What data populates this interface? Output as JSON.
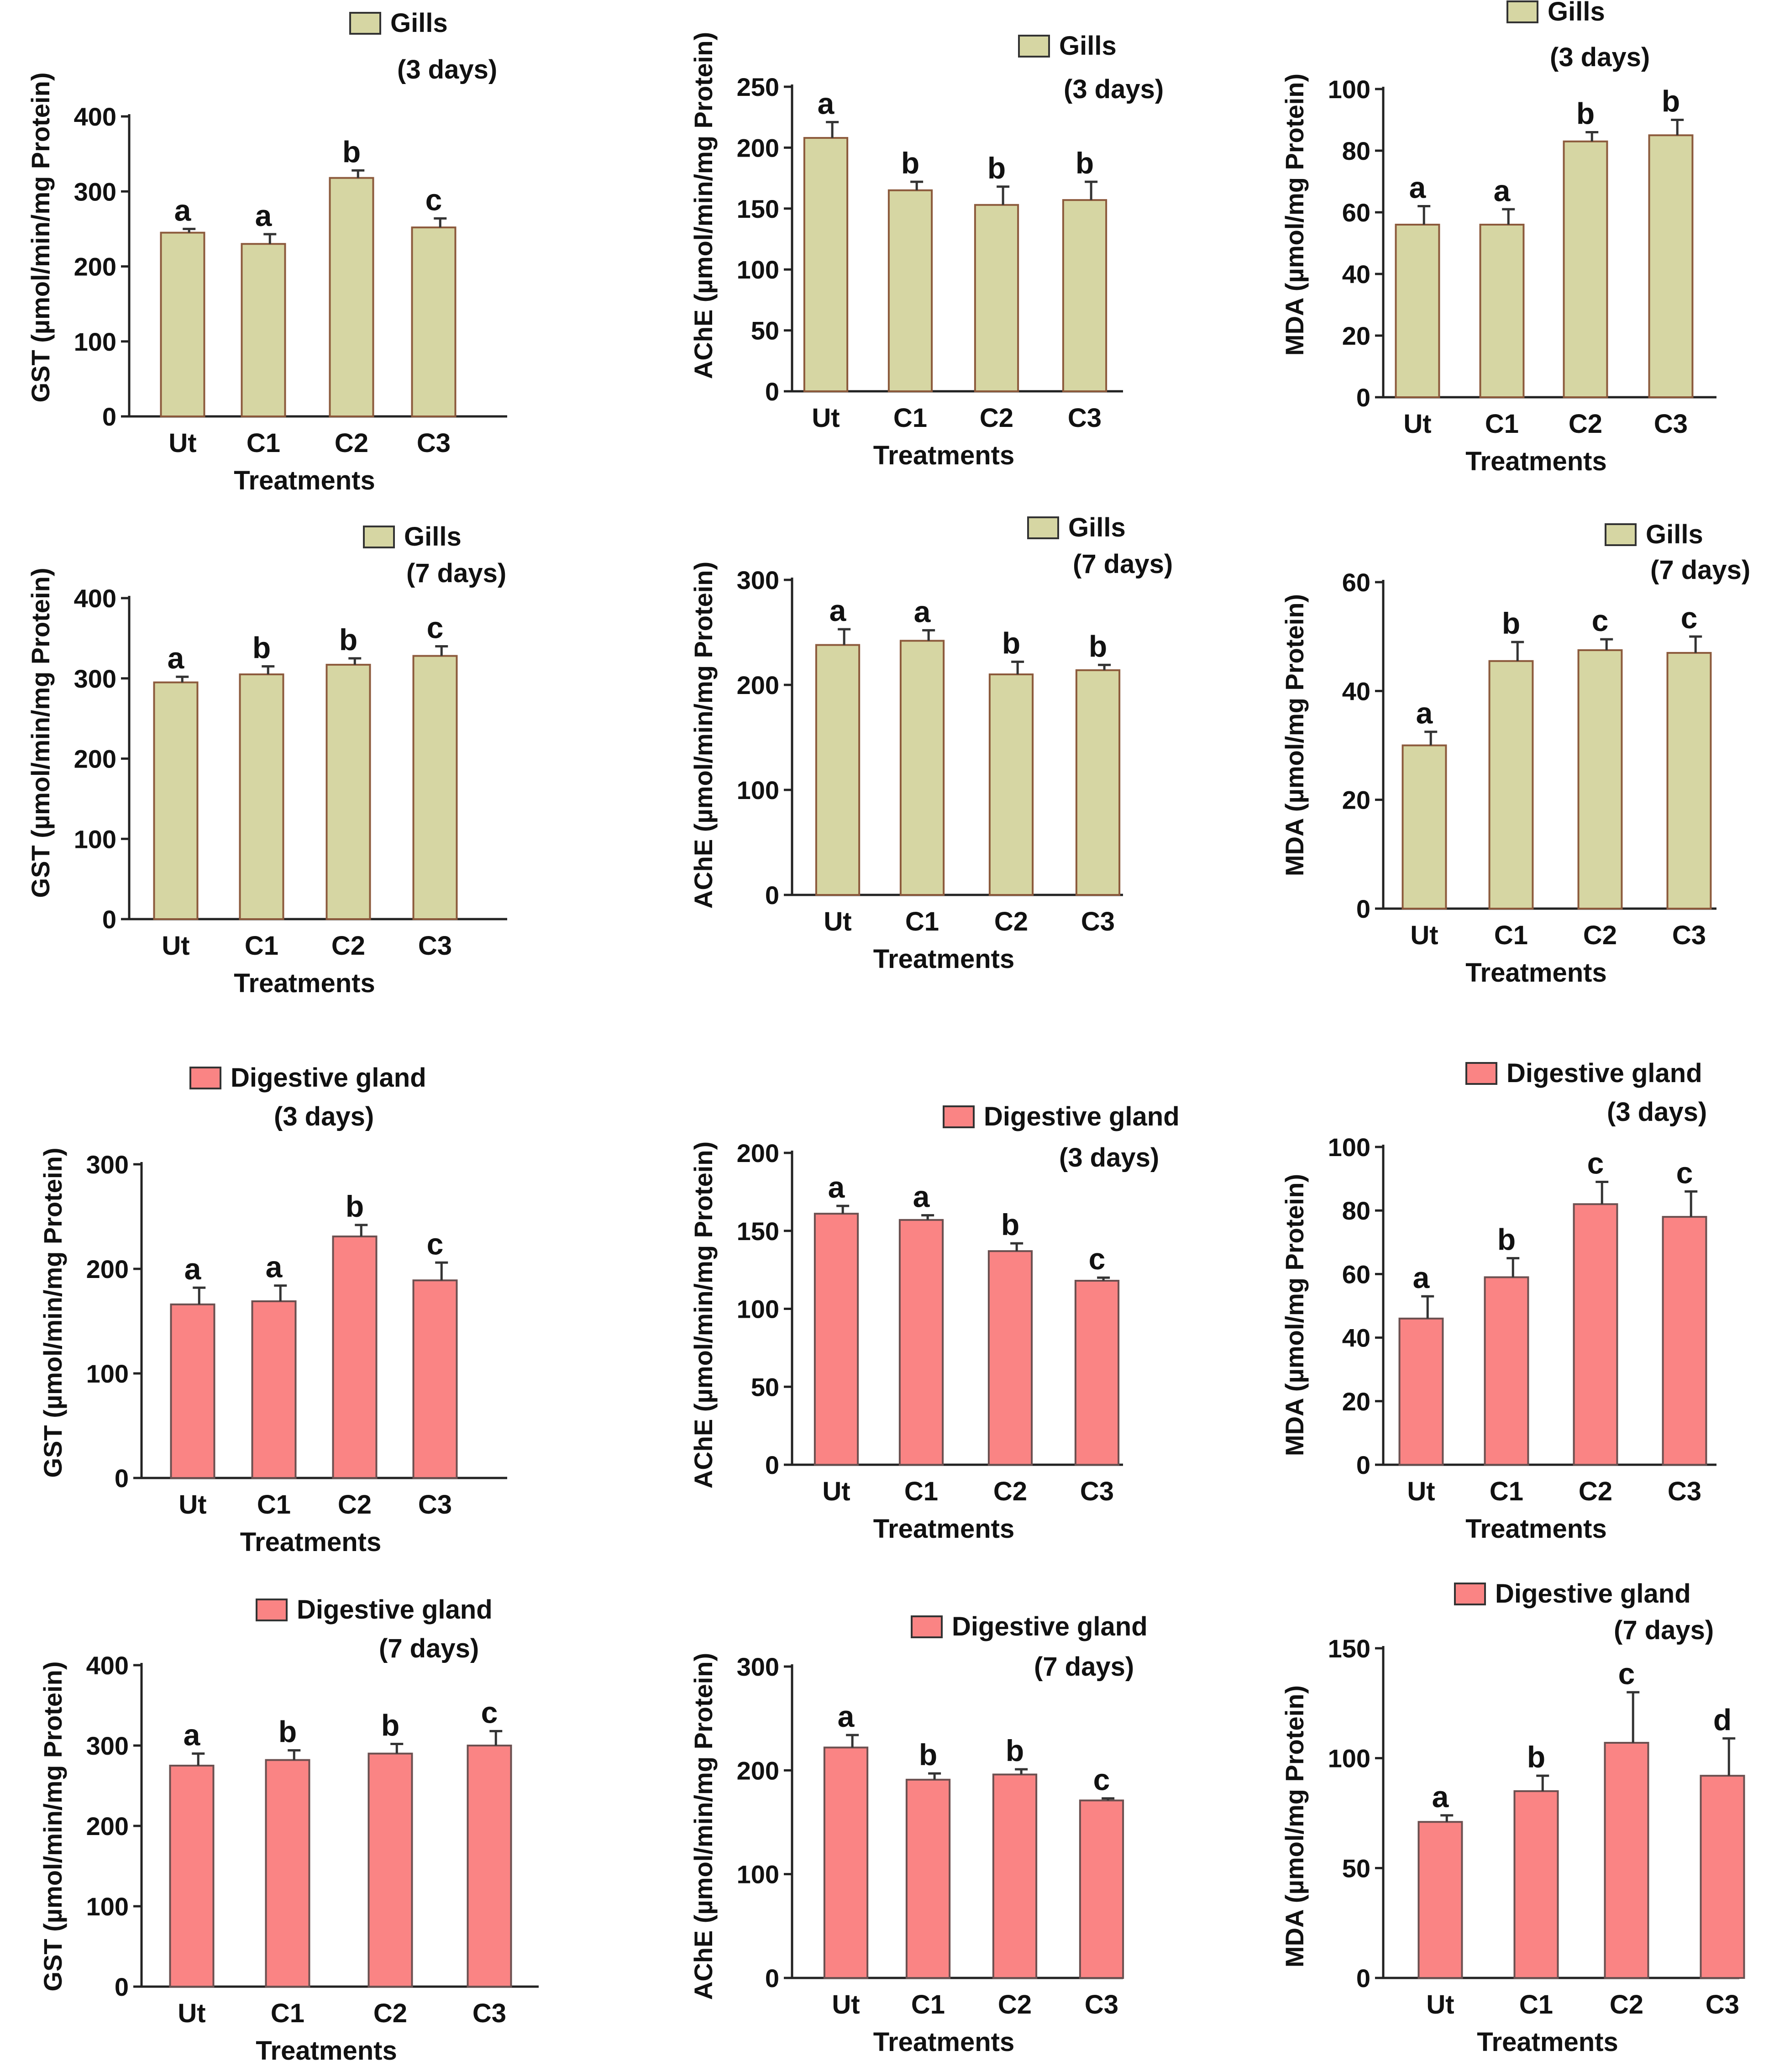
{
  "figure": {
    "xlabel": "Treatments",
    "colors": {
      "Gills": "#d6d6a3",
      "Digestive gland": "#fa8484",
      "edge": "#8c5a3c",
      "edge_dg": "#6b5050"
    }
  },
  "chart_data": [
    {
      "type": "bar",
      "title": "",
      "legend": "Gills",
      "period": "(3 days)",
      "ylabel": "GST (µmol/min/mg Protein)",
      "xlabel": "Treatments",
      "categories": [
        "Ut",
        "C1",
        "C2",
        "C3"
      ],
      "values": [
        245,
        230,
        318,
        252
      ],
      "errors": [
        5,
        13,
        10,
        12
      ],
      "letters": [
        "a",
        "a",
        "b",
        "c"
      ],
      "ylim": [
        0,
        400
      ],
      "yticks": [
        0,
        100,
        200,
        300,
        400
      ]
    },
    {
      "type": "bar",
      "title": "",
      "legend": "Gills",
      "period": "(3 days)",
      "ylabel": "AChE  (µmol/min/mg Protein)",
      "xlabel": "Treatments",
      "categories": [
        "Ut",
        "C1",
        "C2",
        "C3"
      ],
      "values": [
        208,
        165,
        153,
        157
      ],
      "errors": [
        13,
        7,
        15,
        15
      ],
      "letters": [
        "a",
        "b",
        "b",
        "b"
      ],
      "ylim": [
        0,
        250
      ],
      "yticks": [
        0,
        50,
        100,
        150,
        200,
        250
      ]
    },
    {
      "type": "bar",
      "title": "",
      "legend": "Gills",
      "period": "(3 days)",
      "ylabel": "MDA  (µmol/mg Protein)",
      "xlabel": "Treatments",
      "categories": [
        "Ut",
        "C1",
        "C2",
        "C3"
      ],
      "values": [
        56,
        56,
        83,
        85
      ],
      "errors": [
        6,
        5,
        3,
        5
      ],
      "letters": [
        "a",
        "a",
        "b",
        "b"
      ],
      "ylim": [
        0,
        100
      ],
      "yticks": [
        0,
        20,
        40,
        60,
        80,
        100
      ]
    },
    {
      "type": "bar",
      "title": "",
      "legend": "Gills",
      "period": "(7 days)",
      "ylabel": "GST (µmol/min/mg Protein)",
      "xlabel": "Treatments",
      "categories": [
        "Ut",
        "C1",
        "C2",
        "C3"
      ],
      "values": [
        295,
        305,
        317,
        328
      ],
      "errors": [
        7,
        10,
        8,
        12
      ],
      "letters": [
        "a",
        "b",
        "b",
        "c"
      ],
      "ylim": [
        0,
        400
      ],
      "yticks": [
        0,
        100,
        200,
        300,
        400
      ]
    },
    {
      "type": "bar",
      "title": "",
      "legend": "Gills",
      "period": "(7 days)",
      "ylabel": "AChE  (µmol/min/mg Protein)",
      "xlabel": "Treatments",
      "categories": [
        "Ut",
        "C1",
        "C2",
        "C3"
      ],
      "values": [
        238,
        242,
        210,
        214
      ],
      "errors": [
        15,
        10,
        12,
        5
      ],
      "letters": [
        "a",
        "a",
        "b",
        "b"
      ],
      "ylim": [
        0,
        300
      ],
      "yticks": [
        0,
        100,
        200,
        300
      ]
    },
    {
      "type": "bar",
      "title": "",
      "legend": "Gills",
      "period": "(7 days)",
      "ylabel": "MDA  (µmol/mg Protein)",
      "xlabel": "Treatments",
      "categories": [
        "Ut",
        "C1",
        "C2",
        "C3"
      ],
      "values": [
        30,
        45.5,
        47.5,
        47
      ],
      "errors": [
        2.5,
        3.5,
        2,
        3
      ],
      "letters": [
        "a",
        "b",
        "c",
        "c"
      ],
      "ylim": [
        0,
        60
      ],
      "yticks": [
        0,
        20,
        40,
        60
      ]
    },
    {
      "type": "bar",
      "title": "",
      "legend": "Digestive gland",
      "period": "(3 days)",
      "ylabel": "GST (µmol/min/mg Protein)",
      "xlabel": "Treatments",
      "categories": [
        "Ut",
        "C1",
        "C2",
        "C3"
      ],
      "values": [
        166,
        169,
        231,
        189
      ],
      "errors": [
        16,
        15,
        11,
        17
      ],
      "letters": [
        "a",
        "a",
        "b",
        "c"
      ],
      "ylim": [
        0,
        300
      ],
      "yticks": [
        0,
        100,
        200,
        300
      ]
    },
    {
      "type": "bar",
      "title": "",
      "legend": "Digestive gland",
      "period": "(3 days)",
      "ylabel": "AChE  (µmol/min/mg Protein)",
      "xlabel": "Treatments",
      "categories": [
        "Ut",
        "C1",
        "C2",
        "C3"
      ],
      "values": [
        161,
        157,
        137,
        118
      ],
      "errors": [
        5,
        3,
        5,
        2
      ],
      "letters": [
        "a",
        "a",
        "b",
        "c"
      ],
      "ylim": [
        0,
        200
      ],
      "yticks": [
        0,
        50,
        100,
        150,
        200
      ]
    },
    {
      "type": "bar",
      "title": "",
      "legend": "Digestive gland",
      "period": "(3 days)",
      "ylabel": "MDA  (µmol/mg Protein)",
      "xlabel": "Treatments",
      "categories": [
        "Ut",
        "C1",
        "C2",
        "C3"
      ],
      "values": [
        46,
        59,
        82,
        78
      ],
      "errors": [
        7,
        6,
        7,
        8
      ],
      "letters": [
        "a",
        "b",
        "c",
        "c"
      ],
      "ylim": [
        0,
        100
      ],
      "yticks": [
        0,
        20,
        40,
        60,
        80,
        100
      ]
    },
    {
      "type": "bar",
      "title": "",
      "legend": "Digestive gland",
      "period": "(7 days)",
      "ylabel": "GST (µmol/min/mg Protein)",
      "xlabel": "Treatments",
      "categories": [
        "Ut",
        "C1",
        "C2",
        "C3"
      ],
      "values": [
        275,
        282,
        290,
        300
      ],
      "errors": [
        15,
        12,
        12,
        18
      ],
      "letters": [
        "a",
        "b",
        "b",
        "c"
      ],
      "ylim": [
        0,
        400
      ],
      "yticks": [
        0,
        100,
        200,
        300,
        400
      ]
    },
    {
      "type": "bar",
      "title": "",
      "legend": "Digestive gland",
      "period": "(7 days)",
      "ylabel": "AChE  (µmol/min/mg Protein)",
      "xlabel": "Treatments",
      "categories": [
        "Ut",
        "C1",
        "C2",
        "C3"
      ],
      "values": [
        222,
        191,
        196,
        171
      ],
      "errors": [
        12,
        6,
        5,
        2
      ],
      "letters": [
        "a",
        "b",
        "b",
        "c"
      ],
      "ylim": [
        0,
        300
      ],
      "yticks": [
        0,
        100,
        200,
        300
      ]
    },
    {
      "type": "bar",
      "title": "",
      "legend": "Digestive gland",
      "period": "(7 days)",
      "ylabel": "MDA  (µmol/mg Protein)",
      "xlabel": "Treatments",
      "categories": [
        "Ut",
        "C1",
        "C2",
        "C3"
      ],
      "values": [
        71,
        85,
        107,
        92
      ],
      "errors": [
        3,
        7,
        23,
        17
      ],
      "letters": [
        "a",
        "b",
        "c",
        "d"
      ],
      "ylim": [
        0,
        150
      ],
      "yticks": [
        0,
        50,
        100,
        150
      ]
    }
  ]
}
